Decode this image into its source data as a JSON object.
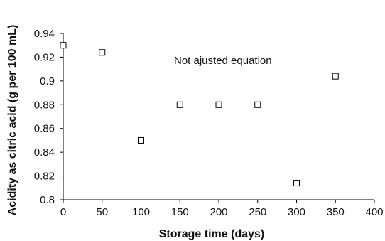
{
  "chart_data": {
    "type": "scatter",
    "title": "",
    "xlabel": "Storage time (days)",
    "ylabel": "Acidity as citric acid (g per 100 mL)",
    "xlim": [
      0,
      400
    ],
    "ylim": [
      0.8,
      0.94
    ],
    "x_ticks": [
      "0",
      "50",
      "100",
      "150",
      "200",
      "250",
      "300",
      "350",
      "400"
    ],
    "y_ticks": [
      "0.8",
      "0.82",
      "0.84",
      "0.86",
      "0.88",
      "0.9",
      "0.92",
      "0.94"
    ],
    "grid": false,
    "marker": "open-square",
    "annotation": "Not ajusted equation",
    "series": [
      {
        "points": [
          {
            "x": 0,
            "y": 0.93
          },
          {
            "x": 50,
            "y": 0.924
          },
          {
            "x": 100,
            "y": 0.85
          },
          {
            "x": 150,
            "y": 0.88
          },
          {
            "x": 200,
            "y": 0.88
          },
          {
            "x": 250,
            "y": 0.88
          },
          {
            "x": 300,
            "y": 0.814
          },
          {
            "x": 350,
            "y": 0.904
          }
        ]
      }
    ]
  }
}
